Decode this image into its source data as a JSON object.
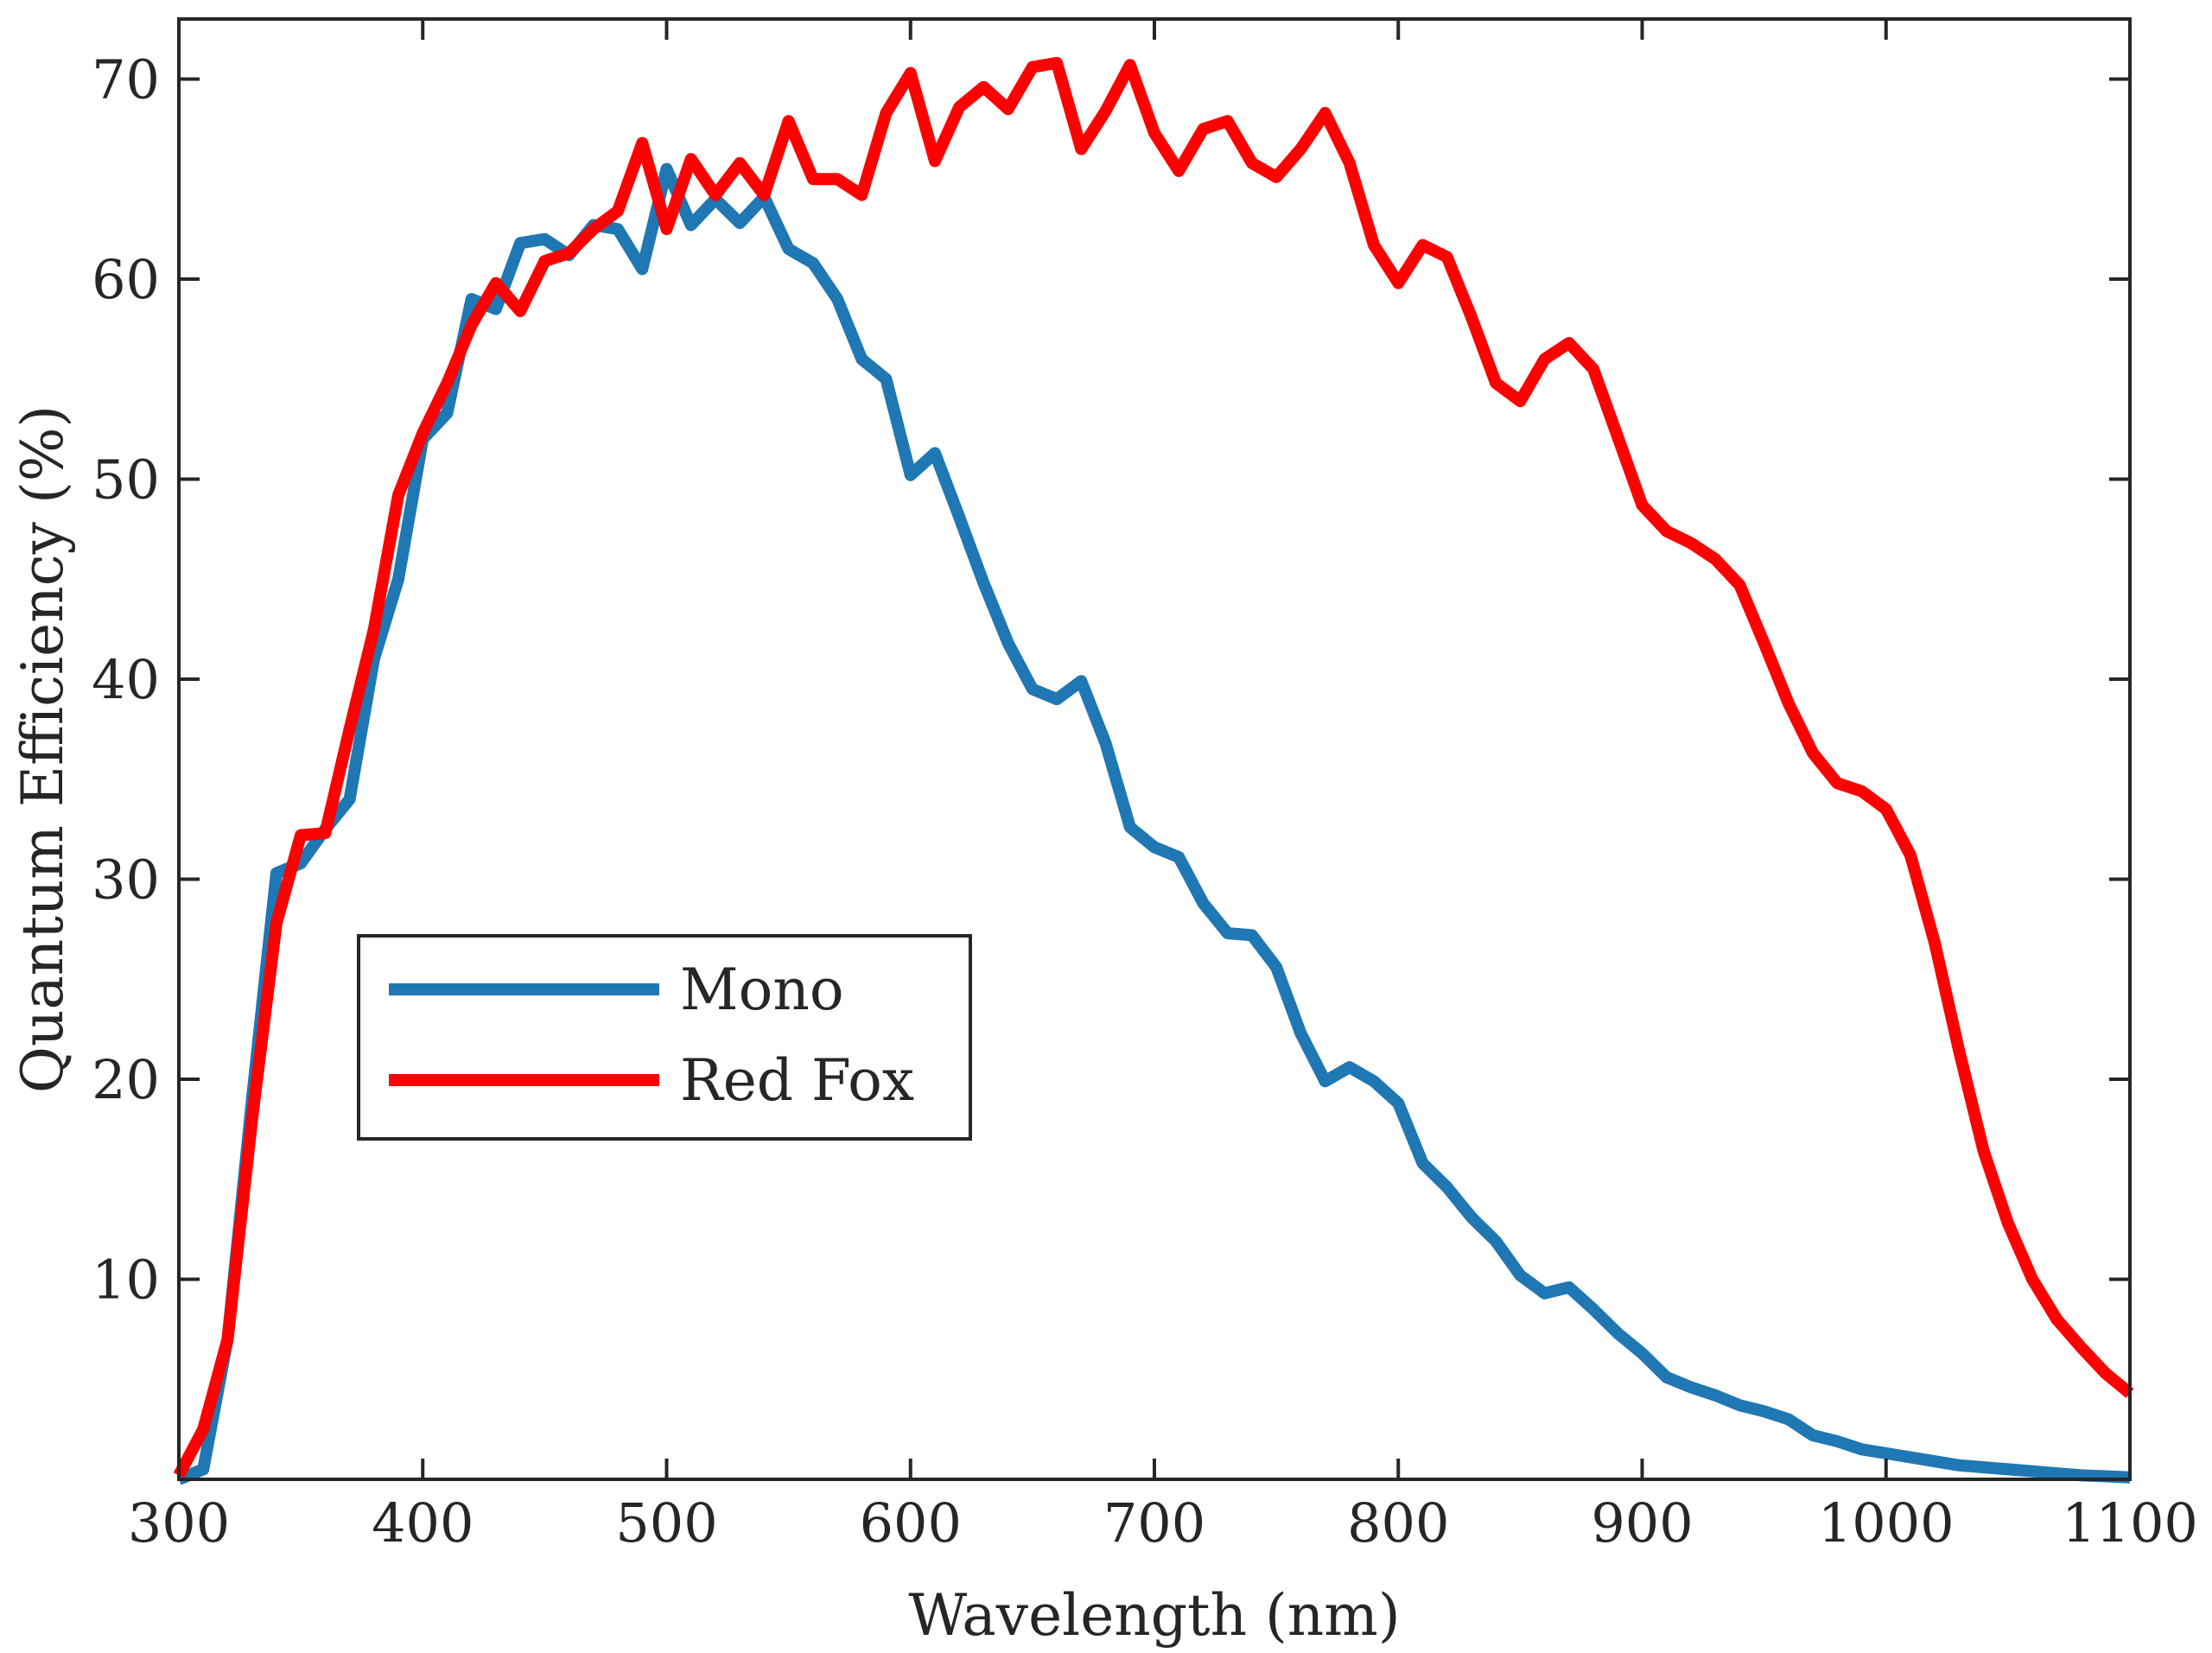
{
  "chart_data": {
    "type": "line",
    "xlabel": "Wavelength (nm)",
    "ylabel": "Quantum Efficiency (%)",
    "xlim": [
      300,
      1100
    ],
    "ylim": [
      0,
      73
    ],
    "xticks": [
      "300",
      "400",
      "500",
      "600",
      "700",
      "800",
      "900",
      "1000",
      "1100"
    ],
    "yticks": [
      "10",
      "20",
      "30",
      "40",
      "50",
      "60",
      "70"
    ],
    "grid": false,
    "legend_position": "center-left",
    "series": [
      {
        "name": "Mono",
        "color": "#1f77b4",
        "x": [
          300,
          310,
          320,
          330,
          340,
          350,
          360,
          370,
          380,
          390,
          400,
          410,
          420,
          430,
          440,
          450,
          460,
          470,
          480,
          490,
          500,
          510,
          520,
          530,
          540,
          550,
          560,
          570,
          580,
          590,
          600,
          610,
          620,
          630,
          640,
          650,
          660,
          670,
          680,
          690,
          700,
          710,
          720,
          730,
          740,
          750,
          760,
          770,
          780,
          790,
          800,
          810,
          820,
          830,
          840,
          850,
          860,
          870,
          880,
          890,
          900,
          910,
          920,
          930,
          940,
          950,
          960,
          970,
          980,
          990,
          1000,
          1010,
          1020,
          1030,
          1040,
          1050,
          1060,
          1070,
          1080,
          1090,
          1100
        ],
        "y": [
          0,
          0.5,
          7,
          19,
          30.3,
          30.8,
          32.5,
          34,
          41,
          45,
          52,
          53.3,
          59,
          58.5,
          61.8,
          62,
          61.2,
          62.7,
          62.5,
          60.5,
          65.5,
          62.7,
          64,
          62.8,
          64.1,
          61.5,
          60.8,
          59,
          56,
          55,
          50.2,
          51.3,
          48.1,
          44.8,
          41.8,
          39.5,
          39,
          39.9,
          36.8,
          32.6,
          31.6,
          31.1,
          28.8,
          27.3,
          27.2,
          25.6,
          22.3,
          19.9,
          20.6,
          19.9,
          18.8,
          15.8,
          14.6,
          13.1,
          11.9,
          10.2,
          9.3,
          9.6,
          8.5,
          7.3,
          6.3,
          5.1,
          4.6,
          4.2,
          3.7,
          3.4,
          3,
          2.2,
          1.9,
          1.5,
          1.3,
          1.1,
          0.9,
          0.7,
          0.6,
          0.5,
          0.4,
          0.3,
          0.2,
          0.15,
          0.1
        ]
      },
      {
        "name": "Red Fox",
        "color": "#ff0000",
        "x": [
          300,
          310,
          320,
          330,
          340,
          350,
          360,
          370,
          380,
          390,
          400,
          410,
          420,
          430,
          440,
          450,
          460,
          470,
          480,
          490,
          500,
          510,
          520,
          530,
          540,
          550,
          560,
          570,
          580,
          590,
          600,
          610,
          620,
          630,
          640,
          650,
          660,
          670,
          680,
          690,
          700,
          710,
          720,
          730,
          740,
          750,
          760,
          770,
          780,
          790,
          800,
          810,
          820,
          830,
          840,
          850,
          860,
          870,
          880,
          890,
          900,
          910,
          920,
          930,
          940,
          950,
          960,
          970,
          980,
          990,
          1000,
          1010,
          1020,
          1030,
          1040,
          1050,
          1060,
          1070,
          1080,
          1090,
          1100
        ],
        "y": [
          0.2,
          2.5,
          7,
          18,
          27.8,
          32.2,
          32.3,
          37.5,
          42.5,
          49.2,
          52.3,
          54.8,
          57.7,
          59.8,
          58.4,
          60.9,
          61.3,
          62.5,
          63.4,
          66.8,
          62.5,
          66,
          64.2,
          65.8,
          64.2,
          67.9,
          65,
          65,
          64.2,
          68.3,
          70.3,
          65.9,
          68.6,
          69.6,
          68.5,
          70.6,
          70.8,
          66.5,
          68.4,
          70.7,
          67.3,
          65.4,
          67.5,
          67.9,
          65.8,
          65.1,
          66.5,
          68.3,
          65.8,
          61.7,
          59.8,
          61.7,
          61.1,
          58.1,
          54.8,
          53.9,
          56,
          56.8,
          55.5,
          52.1,
          48.7,
          47.4,
          46.8,
          46,
          44.7,
          41.8,
          38.8,
          36.3,
          34.8,
          34.4,
          33.5,
          31.2,
          26.8,
          21.4,
          16.4,
          12.8,
          10,
          8,
          6.6,
          5.3,
          4.3
        ]
      }
    ]
  }
}
